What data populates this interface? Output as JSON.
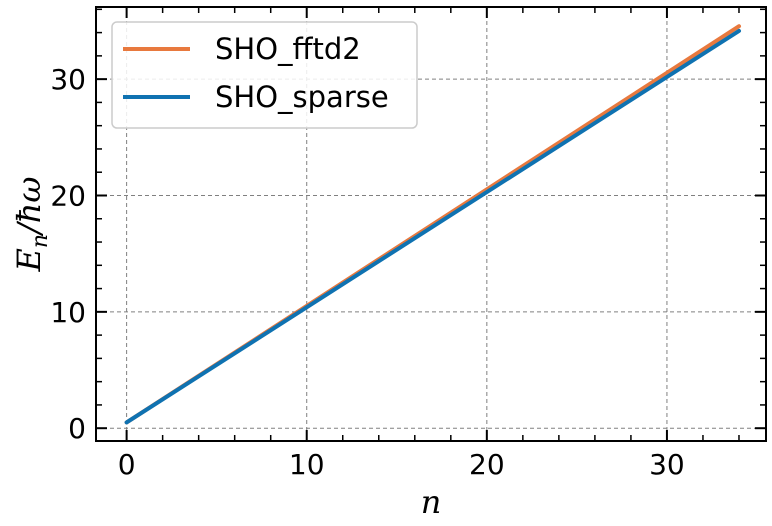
{
  "chart_data": {
    "type": "line",
    "xlabel": "n",
    "ylabel_main": "E",
    "ylabel_sub": "n",
    "ylabel_rest": "/ħω",
    "xlim": [
      -1.7,
      35.5
    ],
    "ylim": [
      -1.1,
      36.2
    ],
    "x_ticks": [
      0,
      10,
      20,
      30
    ],
    "y_ticks": [
      0,
      10,
      20,
      30
    ],
    "x_minor_step": 2,
    "y_minor_step": 2,
    "grid": true,
    "legend_position": "top-left",
    "series": [
      {
        "name": "SHO_fftd2",
        "color": "#e8793e",
        "x": [
          0,
          34
        ],
        "y": [
          0.5,
          34.55
        ]
      },
      {
        "name": "SHO_sparse",
        "color": "#0f72b1",
        "x": [
          0,
          34
        ],
        "y": [
          0.5,
          34.15
        ]
      }
    ]
  }
}
